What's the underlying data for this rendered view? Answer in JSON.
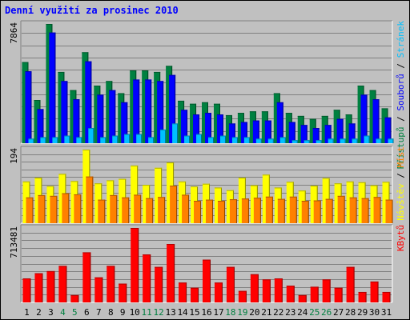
{
  "chart_data": {
    "type": "bar",
    "title": "Denní využití za prosinec 2010",
    "categories": [
      "1",
      "2",
      "3",
      "4",
      "5",
      "6",
      "7",
      "8",
      "9",
      "10",
      "11",
      "12",
      "13",
      "14",
      "15",
      "16",
      "17",
      "18",
      "19",
      "20",
      "21",
      "22",
      "23",
      "24",
      "25",
      "26",
      "27",
      "28",
      "29",
      "30",
      "31"
    ],
    "weekend_days": [
      "4",
      "5",
      "11",
      "12",
      "18",
      "19",
      "25",
      "26"
    ],
    "panels": [
      {
        "name": "pristupy-soubory-stranky",
        "ymax_label": "7864",
        "ymax": 7864,
        "legend": [
          "Přístupů",
          "Souborů",
          "Stránek"
        ],
        "legend_colors": [
          "#008040",
          "#0000ff",
          "#00c0ff"
        ],
        "series": [
          {
            "name": "Přístupů",
            "color": "#008040",
            "values": [
              5350,
              2850,
              7864,
              4700,
              3500,
              6000,
              3800,
              4100,
              3300,
              4800,
              4800,
              4700,
              5100,
              2800,
              2600,
              2700,
              2600,
              1850,
              2000,
              2100,
              2100,
              3300,
              2000,
              1800,
              1600,
              1800,
              2200,
              1900,
              3800,
              3500,
              2300
            ]
          },
          {
            "name": "Souborů",
            "color": "#0000ff",
            "values": [
              4750,
              2250,
              7300,
              4100,
              2900,
              5400,
              3200,
              3500,
              2700,
              4200,
              4200,
              4100,
              4500,
              2200,
              1900,
              2000,
              1900,
              1300,
              1400,
              1500,
              1500,
              2700,
              1400,
              1200,
              1000,
              1200,
              1600,
              1300,
              3200,
              2900,
              1700
            ]
          },
          {
            "name": "Stránek",
            "color": "#00c0ff",
            "values": [
              300,
              400,
              400,
              500,
              400,
              1000,
              400,
              500,
              600,
              600,
              400,
              900,
              1300,
              500,
              600,
              400,
              500,
              400,
              400,
              300,
              300,
              400,
              200,
              200,
              200,
              300,
              300,
              300,
              500,
              300,
              300
            ]
          }
        ]
      },
      {
        "name": "navstev-mist",
        "ymax_label": "194",
        "ymax": 194,
        "legend": [
          "Návštěv",
          "Míst"
        ],
        "legend_colors": [
          "#ffff00",
          "#ff8000"
        ],
        "series": [
          {
            "name": "Návštěv",
            "color": "#ffff00",
            "values": [
              110,
              120,
              98,
              130,
              111,
              194,
              105,
              113,
              117,
              152,
              101,
              146,
              160,
              110,
              97,
              104,
              94,
              87,
              120,
              100,
              128,
              94,
              109,
              86,
              99,
              119,
              105,
              110,
              108,
              100,
              109
            ]
          },
          {
            "name": "Míst",
            "color": "#ff8000",
            "values": [
              68,
              74,
              72,
              79,
              76,
              123,
              62,
              74,
              68,
              75,
              66,
              69,
              99,
              75,
              59,
              62,
              59,
              63,
              65,
              67,
              70,
              64,
              70,
              59,
              60,
              64,
              72,
              68,
              66,
              69,
              62
            ]
          }
        ]
      },
      {
        "name": "kbytu",
        "ymax_label": "713481",
        "ymax": 713481,
        "legend": [
          "KBytů"
        ],
        "legend_colors": [
          "#ff0000"
        ],
        "series": [
          {
            "name": "KBytů",
            "color": "#ff0000",
            "values": [
              230000,
              280000,
              300000,
              350000,
              70000,
              480000,
              240000,
              350000,
              180000,
              713481,
              460000,
              340000,
              560000,
              190000,
              140000,
              410000,
              190000,
              340000,
              110000,
              270000,
              220000,
              230000,
              160000,
              70000,
              150000,
              220000,
              140000,
              340000,
              100000,
              200000,
              100000
            ]
          }
        ]
      }
    ]
  }
}
